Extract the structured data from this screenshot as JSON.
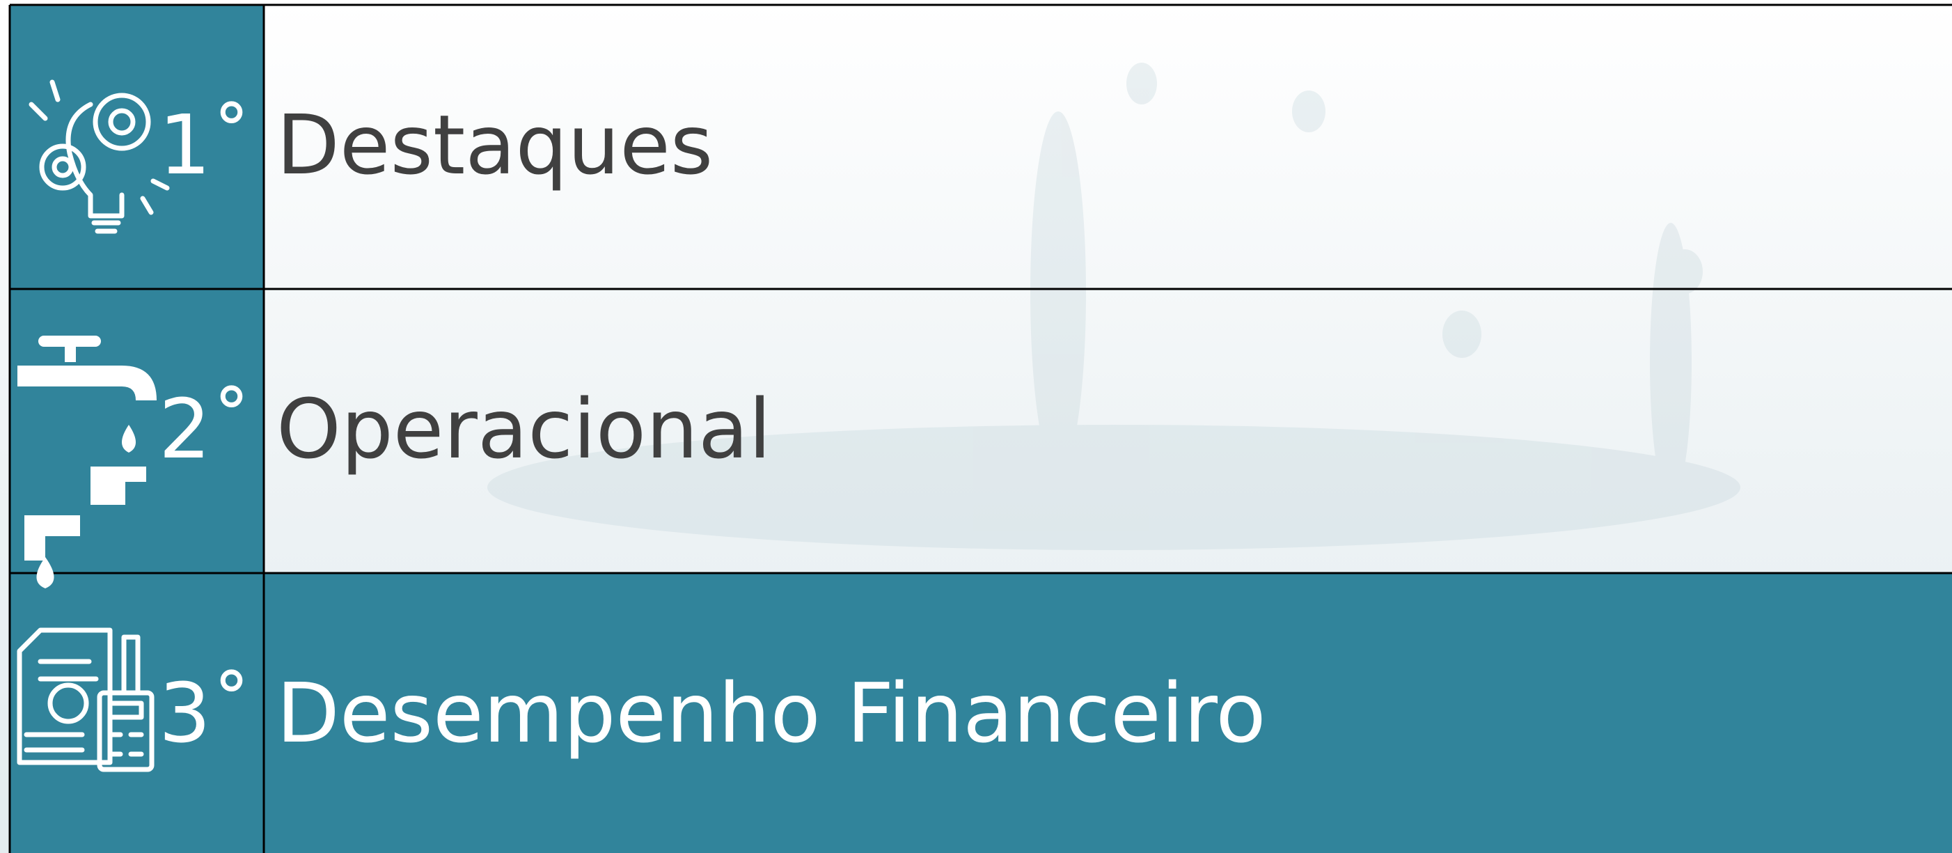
{
  "items": [
    {
      "number": "1˚",
      "label": "Destaques"
    },
    {
      "number": "2˚",
      "label": "Operacional"
    },
    {
      "number": "3˚",
      "label": "Desempenho Financeiro"
    }
  ]
}
